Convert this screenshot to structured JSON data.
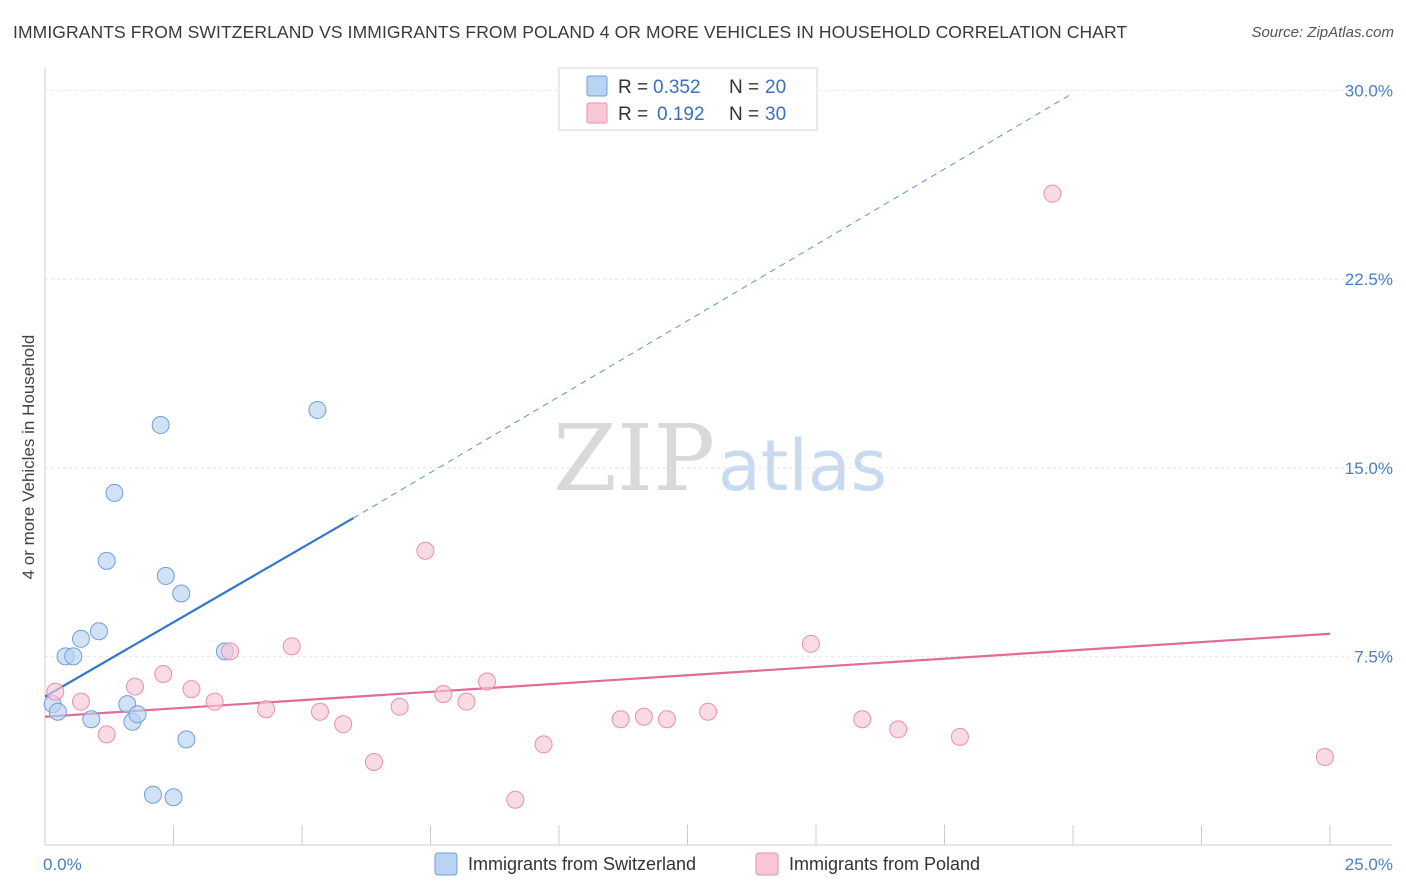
{
  "title": "IMMIGRANTS FROM SWITZERLAND VS IMMIGRANTS FROM POLAND 4 OR MORE VEHICLES IN HOUSEHOLD CORRELATION CHART",
  "source": "Source: ZipAtlas.com",
  "watermark": {
    "zip": "ZIP",
    "atlas": "atlas"
  },
  "colors": {
    "switzerland_fill": "#b9d3f2",
    "switzerland_stroke": "#6f9fd8",
    "switzerland_line": "#3377cc",
    "poland_fill": "#f8c7d6",
    "poland_stroke": "#ea8fae",
    "poland_line": "#e06c97"
  },
  "legend": {
    "r_label": "R =",
    "n_label": "N =",
    "switzerland": {
      "r": "0.352",
      "n": "20"
    },
    "poland": {
      "r": "0.192",
      "n": "30"
    }
  },
  "chart_data": {
    "type": "scatter",
    "ylabel": "4 or more Vehicles in Household",
    "xlabel": "",
    "xlim": [
      0,
      25
    ],
    "ylim": [
      0,
      30.5
    ],
    "x_tick_labels": [
      {
        "value": 0,
        "label": "0.0%"
      },
      {
        "value": 25,
        "label": "25.0%"
      }
    ],
    "y_tick_labels": [
      {
        "value": 7.5,
        "label": "7.5%"
      },
      {
        "value": 15.0,
        "label": "15.0%"
      },
      {
        "value": 22.5,
        "label": "22.5%"
      },
      {
        "value": 30.0,
        "label": "30.0%"
      }
    ],
    "series": [
      {
        "name": "Immigrants from Switzerland",
        "key": "switzerland",
        "points": [
          [
            0.15,
            5.6
          ],
          [
            0.25,
            5.3
          ],
          [
            0.4,
            7.5
          ],
          [
            0.55,
            7.5
          ],
          [
            0.7,
            8.2
          ],
          [
            0.9,
            5.0
          ],
          [
            1.05,
            8.5
          ],
          [
            1.2,
            11.3
          ],
          [
            1.35,
            14.0
          ],
          [
            1.6,
            5.6
          ],
          [
            1.7,
            4.9
          ],
          [
            1.8,
            5.2
          ],
          [
            2.1,
            2.0
          ],
          [
            2.25,
            16.7
          ],
          [
            2.35,
            10.7
          ],
          [
            2.5,
            1.9
          ],
          [
            2.65,
            10.0
          ],
          [
            2.75,
            4.2
          ],
          [
            3.5,
            7.7
          ],
          [
            5.3,
            17.3
          ]
        ],
        "trend": {
          "solid": [
            [
              0,
              5.9
            ],
            [
              6.0,
              13.0
            ]
          ],
          "dashed": [
            [
              6.0,
              13.0
            ],
            [
              20.0,
              29.9
            ]
          ]
        }
      },
      {
        "name": "Immigrants from Poland",
        "key": "poland",
        "points": [
          [
            0.2,
            6.1
          ],
          [
            0.7,
            5.7
          ],
          [
            1.2,
            4.4
          ],
          [
            1.75,
            6.3
          ],
          [
            2.3,
            6.8
          ],
          [
            2.85,
            6.2
          ],
          [
            3.3,
            5.7
          ],
          [
            3.6,
            7.7
          ],
          [
            4.3,
            5.4
          ],
          [
            4.8,
            7.9
          ],
          [
            5.35,
            5.3
          ],
          [
            5.8,
            4.8
          ],
          [
            6.4,
            3.3
          ],
          [
            6.9,
            5.5
          ],
          [
            7.4,
            11.7
          ],
          [
            7.75,
            6.0
          ],
          [
            8.2,
            5.7
          ],
          [
            8.6,
            6.5
          ],
          [
            9.15,
            1.8
          ],
          [
            9.7,
            4.0
          ],
          [
            11.2,
            5.0
          ],
          [
            11.65,
            5.1
          ],
          [
            12.1,
            5.0
          ],
          [
            12.9,
            5.3
          ],
          [
            14.9,
            8.0
          ],
          [
            15.9,
            5.0
          ],
          [
            16.6,
            4.6
          ],
          [
            17.8,
            4.3
          ],
          [
            19.6,
            25.9
          ],
          [
            24.9,
            3.5
          ]
        ],
        "trend": {
          "solid": [
            [
              0,
              5.1
            ],
            [
              25.0,
              8.4
            ]
          ]
        }
      }
    ]
  }
}
